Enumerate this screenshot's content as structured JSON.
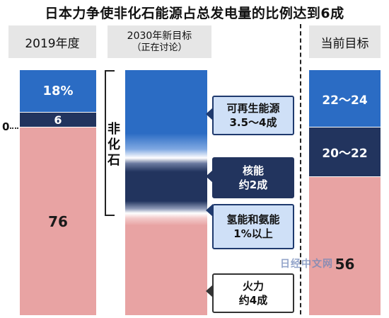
{
  "title": "日本力争使非化石能源占总发电量的比例达到6成",
  "columns": {
    "c2019": {
      "header": "2019年度"
    },
    "c2030": {
      "header_line1": "2030年新目标",
      "header_line2": "（正在讨论）"
    },
    "current": {
      "header": "当前目标"
    }
  },
  "zero_label": "0",
  "bracket_label": "非化石",
  "callouts": {
    "renewable": {
      "line1": "可再生能源",
      "line2": "3.5～4成"
    },
    "nuclear": {
      "line1": "核能",
      "line2": "约2成"
    },
    "hydrogen": {
      "line1": "氢能和氨能",
      "line2": "1%以上"
    },
    "thermal": {
      "line1": "火力",
      "line2": "约4成"
    }
  },
  "watermark": "日经中文网",
  "colors": {
    "renewable": "#2b6cc4",
    "nuclear": "#22345e",
    "thermal": "#e8a3a3",
    "header_bg": "#e6e6e6",
    "callout_blue": "#cfe0f7",
    "callout_navy": "#22345e"
  },
  "chart_data": {
    "type": "bar",
    "categories": [
      "2019年度",
      "2030年新目标（正在讨论）",
      "当前目标"
    ],
    "series": [
      {
        "name": "可再生能源",
        "values": [
          18,
          37.5,
          23
        ],
        "labels": [
          "18%",
          "",
          "22～24"
        ]
      },
      {
        "name": "核能",
        "values": [
          6,
          20,
          21
        ],
        "labels": [
          "6",
          "",
          "20～22"
        ]
      },
      {
        "name": "火力",
        "values": [
          76,
          40,
          56
        ],
        "labels": [
          "76",
          "",
          "56"
        ]
      }
    ],
    "stacked": true,
    "unit": "%",
    "ylim": [
      0,
      100
    ]
  }
}
